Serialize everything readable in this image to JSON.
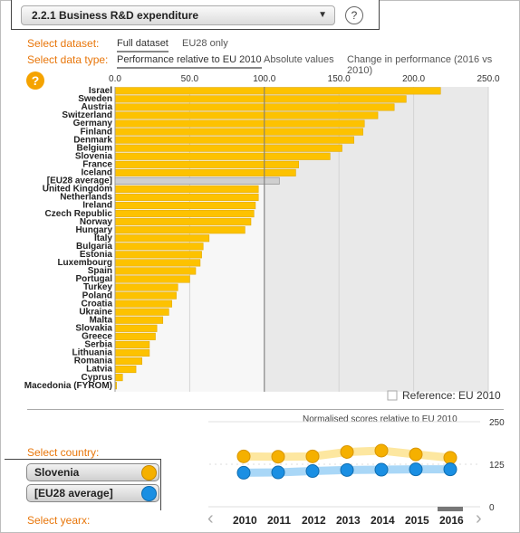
{
  "indicator": {
    "label": "2.2.1 Business R&D expenditure",
    "help": "?"
  },
  "controls": {
    "dataset_label": "Select dataset:",
    "dataset_options": [
      "Full dataset",
      "EU28 only"
    ],
    "datatype_label": "Select data type:",
    "datatype_options": [
      "Performance relative to EU 2010",
      "Absolute values",
      "Change in performance (2016 vs 2010)"
    ],
    "help": "?"
  },
  "colors": {
    "bar": "#fdc200",
    "bar_edge": "#e3aa00",
    "eu_bar": "#cfcfcf",
    "accent": "#e8760a",
    "eu_dot": "#1a8fe3",
    "si_dot": "#f5b000"
  },
  "chart_data": [
    {
      "type": "bar",
      "orientation": "horizontal",
      "categories": [
        "Israel",
        "Sweden",
        "Austria",
        "Switzerland",
        "Germany",
        "Finland",
        "Denmark",
        "Belgium",
        "Slovenia",
        "France",
        "Iceland",
        "[EU28 average]",
        "United Kingdom",
        "Netherlands",
        "Ireland",
        "Czech Republic",
        "Norway",
        "Hungary",
        "Italy",
        "Bulgaria",
        "Estonia",
        "Luxembourg",
        "Spain",
        "Portugal",
        "Turkey",
        "Poland",
        "Croatia",
        "Ukraine",
        "Malta",
        "Slovakia",
        "Greece",
        "Serbia",
        "Lithuania",
        "Romania",
        "Latvia",
        "Cyprus",
        "Macedonia (FYROM)"
      ],
      "values": [
        218,
        195,
        187,
        176,
        167,
        166,
        160,
        152,
        144,
        123,
        121,
        110,
        96,
        96,
        94,
        93,
        91,
        87,
        63,
        59,
        58,
        57,
        54,
        50,
        42,
        41,
        38,
        36,
        32,
        28,
        27,
        23,
        23,
        18,
        14,
        5,
        1
      ],
      "highlight": "[EU28 average]",
      "reference": 100,
      "reference_label": "Reference: EU 2010",
      "xlim": [
        0,
        250
      ],
      "xticks": [
        "0.0",
        "50.0",
        "100.0",
        "150.0",
        "200.0",
        "250.0"
      ]
    },
    {
      "type": "line",
      "title": "Normalised scores relative to EU 2010",
      "x": [
        "2010",
        "2011",
        "2012",
        "2013",
        "2014",
        "2015",
        "2016"
      ],
      "series": [
        {
          "name": "Slovenia",
          "values": [
            148,
            147,
            148,
            161,
            165,
            154,
            144
          ]
        },
        {
          "name": "[EU28 average]",
          "values": [
            100,
            101,
            105,
            108,
            109,
            110,
            110
          ]
        }
      ],
      "ylim": [
        0,
        250
      ],
      "yticks": [
        "250",
        "125",
        "0"
      ]
    }
  ],
  "country": {
    "label": "Select country:",
    "items": [
      {
        "name": "Slovenia"
      },
      {
        "name": "[EU28 average]"
      }
    ]
  },
  "years": {
    "label": "Select yearx:",
    "items": [
      "2010",
      "2011",
      "2012",
      "2013",
      "2014",
      "2015",
      "2016"
    ],
    "selected": "2016",
    "prev": "‹",
    "next": "›"
  }
}
